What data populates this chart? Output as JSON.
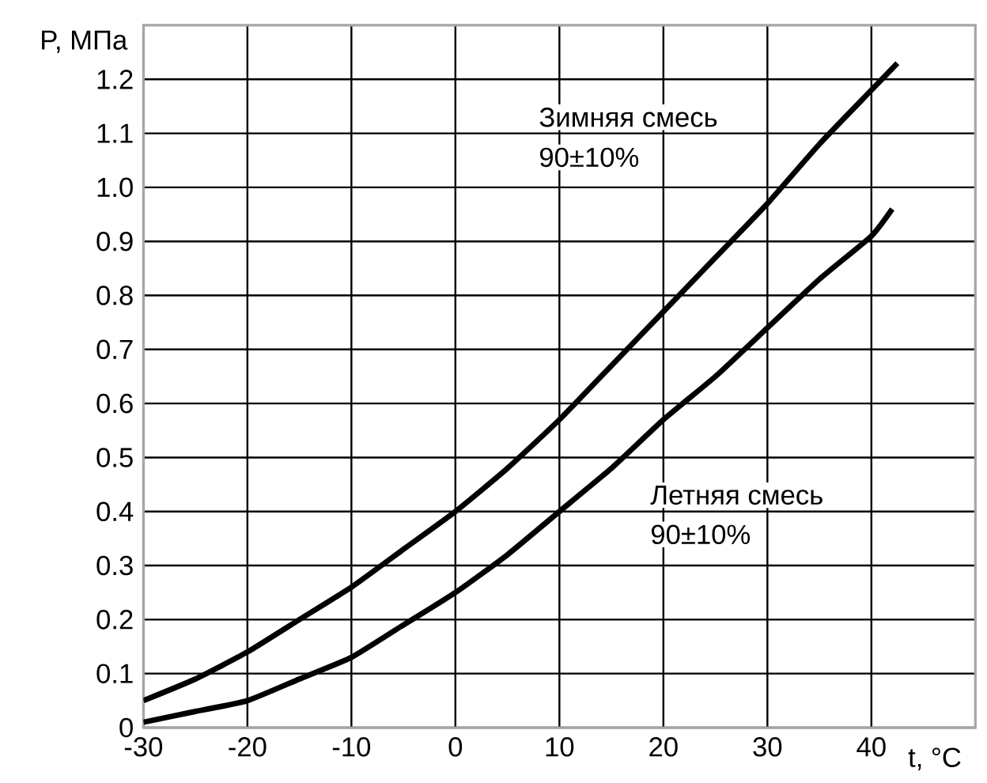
{
  "chart_data": {
    "type": "line",
    "xlabel": "t, °C",
    "ylabel": "P, МПа",
    "series": [
      {
        "color": "#000000",
        "x": [
          -30,
          -25,
          -20,
          -15,
          -10,
          -5,
          0,
          5,
          10,
          15,
          20,
          25,
          30,
          35,
          40,
          42.5
        ],
        "values": [
          0.05,
          0.09,
          0.14,
          0.2,
          0.26,
          0.33,
          0.4,
          0.48,
          0.57,
          0.67,
          0.77,
          0.87,
          0.97,
          1.08,
          1.18,
          1.23
        ]
      },
      {
        "color": "#000000",
        "x": [
          -30,
          -25,
          -20,
          -15,
          -10,
          -5,
          0,
          5,
          10,
          15,
          20,
          25,
          30,
          35,
          40,
          42
        ],
        "values": [
          0.01,
          0.03,
          0.05,
          0.09,
          0.13,
          0.19,
          0.25,
          0.32,
          0.4,
          0.48,
          0.57,
          0.65,
          0.74,
          0.83,
          0.91,
          0.96
        ]
      }
    ],
    "annotations": [
      "Зимняя смесь",
      "90±10%",
      "Летняя смесь",
      "90±10%"
    ],
    "xlim": [
      -30,
      50
    ],
    "ylim": [
      0,
      1.3
    ],
    "xticks": [
      -30,
      -20,
      -10,
      0,
      10,
      20,
      30,
      40
    ],
    "yticks": [
      0,
      0.1,
      0.2,
      0.3,
      0.4,
      0.5,
      0.6,
      0.7,
      0.8,
      0.9,
      {
        "value": 1,
        "label": "1.0"
      },
      1.1,
      1.2
    ],
    "grid": true,
    "marker": "none",
    "line_style": "solid"
  }
}
